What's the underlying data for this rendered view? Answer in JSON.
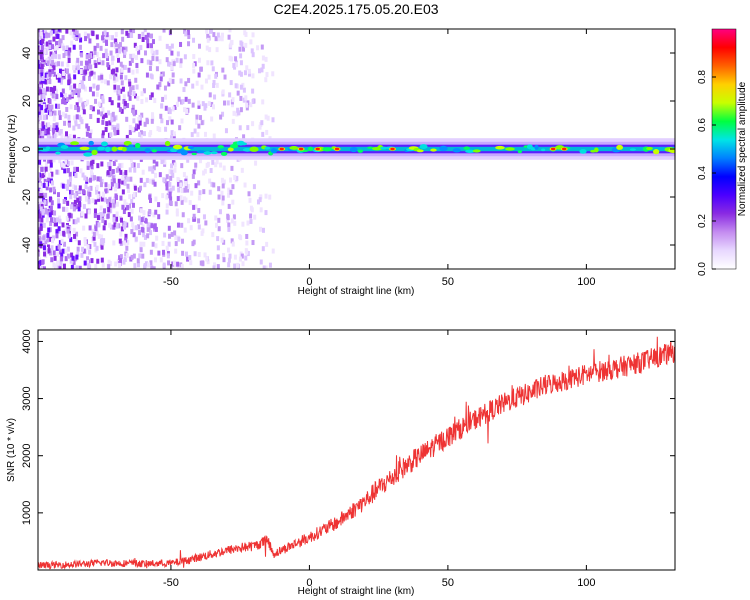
{
  "title": "C2E4.2025.175.05.20.E03",
  "chart_data": [
    {
      "type": "heatmap",
      "title": "C2E4.2025.175.05.20.E03",
      "xlabel": "Height of straight line (km)",
      "ylabel": "Frequency (Hz)",
      "xlim": [
        -98,
        132
      ],
      "ylim": [
        -50,
        50
      ],
      "x_ticks": [
        -50,
        0,
        50,
        100
      ],
      "y_ticks": [
        -40,
        -20,
        0,
        20,
        40
      ],
      "colorbar": {
        "label": "Normalized spectral amplitude",
        "range": [
          0,
          1
        ],
        "ticks": [
          0.0,
          0.2,
          0.4,
          0.6,
          0.8
        ],
        "colormap": [
          "#ffffff",
          "#e8d8ff",
          "#c48cf0",
          "#8a2be2",
          "#4b00ff",
          "#0000ff",
          "#0080ff",
          "#00e5e5",
          "#00ff40",
          "#c8ff00",
          "#ffd000",
          "#ff6000",
          "#ff0000",
          "#ff0080"
        ]
      },
      "features": {
        "carrier_band_center_hz": 0,
        "band_halfwidth_hz": 3,
        "noise_region_end_km": -13,
        "peak_highlights_km": [
          -10,
          -3,
          3,
          10,
          30,
          88,
          92
        ]
      },
      "grid": false
    },
    {
      "type": "line",
      "xlabel": "Height of straight line (km)",
      "ylabel": "SNR (10 * v/v)",
      "xlim": [
        -98,
        132
      ],
      "ylim": [
        0,
        4200
      ],
      "x_ticks": [
        -50,
        0,
        50,
        100
      ],
      "y_ticks": [
        1000,
        2000,
        3000,
        4000
      ],
      "color": "#ee3333",
      "series": [
        {
          "x": [
            -98,
            -90,
            -80,
            -75,
            -70,
            -60,
            -50,
            -45,
            -40,
            -35,
            -30,
            -25,
            -20,
            -15,
            -13,
            -10,
            -5,
            0,
            5,
            10,
            15,
            20,
            25,
            30,
            35,
            40,
            45,
            50,
            55,
            60,
            65,
            70,
            75,
            80,
            85,
            90,
            95,
            100,
            105,
            110,
            115,
            120,
            125,
            132
          ],
          "y": [
            80,
            90,
            110,
            130,
            120,
            110,
            120,
            160,
            220,
            280,
            340,
            390,
            420,
            520,
            280,
            350,
            460,
            570,
            700,
            830,
            1020,
            1200,
            1430,
            1620,
            1830,
            2000,
            2170,
            2330,
            2490,
            2640,
            2780,
            2910,
            3020,
            3110,
            3230,
            3290,
            3360,
            3420,
            3480,
            3520,
            3580,
            3640,
            3720,
            3820
          ],
          "noise_amplitude": 150
        }
      ],
      "grid": false
    }
  ]
}
